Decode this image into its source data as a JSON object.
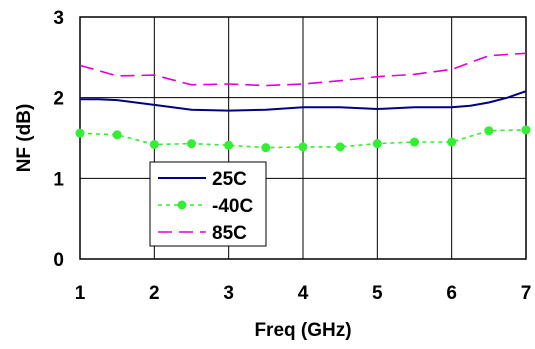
{
  "chart_data": {
    "type": "line",
    "title": "",
    "xlabel": "Freq (GHz)",
    "ylabel": "NF (dB)",
    "xlim": [
      1,
      7
    ],
    "ylim": [
      0,
      3
    ],
    "xticks": [
      "1",
      "2",
      "3",
      "4",
      "5",
      "6",
      "7"
    ],
    "yticks": [
      "0",
      "1",
      "2",
      "3"
    ],
    "grid": true,
    "legend_position": "lower-left",
    "series": [
      {
        "name": "25C",
        "color": "#000080",
        "style": "solid",
        "markers": false,
        "x": [
          1,
          1.25,
          1.5,
          2,
          2.5,
          3,
          3.5,
          4,
          4.5,
          5,
          5.5,
          6,
          6.25,
          6.5,
          6.75,
          7
        ],
        "y": [
          1.98,
          1.98,
          1.97,
          1.91,
          1.85,
          1.84,
          1.85,
          1.88,
          1.88,
          1.86,
          1.88,
          1.88,
          1.9,
          1.94,
          2.0,
          2.08
        ]
      },
      {
        "name": "-40C",
        "color": "#33ee33",
        "style": "dotted",
        "markers": true,
        "x": [
          1,
          1.5,
          2,
          2.5,
          3,
          3.5,
          4,
          4.5,
          5,
          5.5,
          6,
          6.5,
          7
        ],
        "y": [
          1.56,
          1.54,
          1.42,
          1.43,
          1.41,
          1.38,
          1.39,
          1.39,
          1.43,
          1.45,
          1.45,
          1.59,
          1.6
        ]
      },
      {
        "name": "85C",
        "color": "#dd00dd",
        "style": "dashed",
        "markers": false,
        "x": [
          1,
          1.5,
          2,
          2.5,
          3,
          3.5,
          4,
          4.5,
          5,
          5.5,
          6,
          6.5,
          7
        ],
        "y": [
          2.4,
          2.27,
          2.28,
          2.16,
          2.17,
          2.15,
          2.17,
          2.21,
          2.26,
          2.29,
          2.35,
          2.52,
          2.55
        ]
      }
    ]
  }
}
